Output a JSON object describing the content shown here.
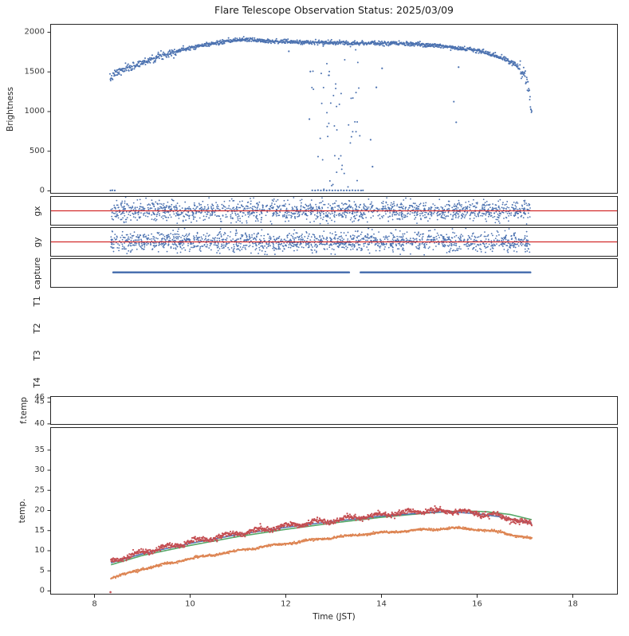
{
  "colors": {
    "blue": "#4c72b0",
    "red": "#c44e52",
    "green": "#55a868",
    "orange": "#dd8452",
    "hline_red": "#d22c2c",
    "spine": "#262626",
    "tick": "#3a3a3a",
    "background": "#ffffff"
  },
  "chart_data": {
    "type": "scatter",
    "subtype": "multi-panel time series (scatter + line, matplotlib style)",
    "title": "Flare Telescope Observation Status: 2025/03/09",
    "xlabel": "Time (JST)",
    "x_range": [
      7.08,
      18.95
    ],
    "x_ticks": [
      8,
      10,
      12,
      14,
      16,
      18
    ],
    "data_time_span": [
      8.33,
      17.15
    ],
    "seed": 7,
    "panels": [
      {
        "ylabel": "Brightness",
        "ylim": [
          -40,
          2100
        ],
        "yticks": [
          0,
          500,
          1000,
          1500,
          2000
        ],
        "border": true,
        "envelope": [
          [
            8.33,
            1400
          ],
          [
            8.45,
            1480
          ],
          [
            8.7,
            1540
          ],
          [
            9.0,
            1610
          ],
          [
            9.3,
            1680
          ],
          [
            9.6,
            1740
          ],
          [
            10.0,
            1800
          ],
          [
            10.4,
            1845
          ],
          [
            10.8,
            1880
          ],
          [
            11.1,
            1905
          ],
          [
            11.4,
            1895
          ],
          [
            11.8,
            1880
          ],
          [
            12.3,
            1870
          ],
          [
            12.8,
            1865
          ],
          [
            13.3,
            1860
          ],
          [
            13.8,
            1858
          ],
          [
            14.3,
            1852
          ],
          [
            14.8,
            1840
          ],
          [
            15.2,
            1825
          ],
          [
            15.6,
            1800
          ],
          [
            16.0,
            1762
          ],
          [
            16.3,
            1720
          ],
          [
            16.6,
            1655
          ],
          [
            16.85,
            1570
          ],
          [
            17.0,
            1460
          ],
          [
            17.08,
            1300
          ],
          [
            17.12,
            1130
          ],
          [
            17.15,
            1000
          ]
        ],
        "series": [
          {
            "name": "brightness",
            "type": "env_scatter",
            "color": "blue",
            "n": 1250,
            "t": [
              8.33,
              17.15
            ],
            "sigma": 13,
            "size": 1.0,
            "sigma_regions": [
              [
                8.33,
                9.8,
                25
              ],
              [
                16.9,
                17.15,
                45
              ]
            ]
          },
          {
            "name": "cloud-dropouts",
            "type": "env_drop_scatter",
            "color": "blue",
            "n": 55,
            "t": [
              12.55,
              13.62
            ],
            "size": 1.0
          },
          {
            "name": "dropout-zeros",
            "type": "scatter_points",
            "color": "blue",
            "size": 1.1,
            "points": [
              [
                12.56,
                2
              ],
              [
                12.62,
                0
              ],
              [
                12.68,
                4
              ],
              [
                12.74,
                0
              ],
              [
                12.8,
                2
              ],
              [
                12.86,
                0
              ],
              [
                12.92,
                3
              ],
              [
                12.98,
                0
              ],
              [
                13.04,
                2
              ],
              [
                13.1,
                0
              ],
              [
                13.16,
                3
              ],
              [
                13.22,
                0
              ],
              [
                13.28,
                2
              ],
              [
                13.34,
                0
              ],
              [
                13.4,
                3
              ],
              [
                13.46,
                0
              ],
              [
                13.52,
                2
              ],
              [
                13.58,
                0
              ],
              [
                13.62,
                2
              ],
              [
                8.34,
                0
              ],
              [
                8.38,
                3
              ],
              [
                8.43,
                0
              ]
            ]
          },
          {
            "name": "stray-points",
            "type": "scatter_points",
            "color": "blue",
            "size": 1.1,
            "points": [
              [
                12.07,
                1755
              ],
              [
                12.5,
                900
              ],
              [
                12.52,
                1500
              ],
              [
                13.78,
                640
              ],
              [
                13.82,
                300
              ],
              [
                13.9,
                1300
              ],
              [
                14.02,
                1540
              ],
              [
                15.52,
                1120
              ],
              [
                15.57,
                860
              ],
              [
                15.62,
                1555
              ],
              [
                15.66,
                1800
              ]
            ]
          }
        ]
      },
      {
        "ylabel": "gx",
        "ylim": [
          -1,
          1
        ],
        "yticks": [],
        "border": true,
        "series": [
          {
            "name": "gx-error",
            "type": "noise_scatter",
            "color": "blue",
            "n": 1600,
            "t": [
              8.35,
              17.12
            ],
            "mean": 0,
            "sigma": 0.33,
            "clip": 0.92,
            "size": 0.9
          },
          {
            "name": "gx-target-line",
            "type": "hline",
            "color": "hline_red",
            "y": 0,
            "lw": 1.2
          }
        ]
      },
      {
        "ylabel": "gy",
        "ylim": [
          -1,
          1
        ],
        "yticks": [],
        "border": true,
        "series": [
          {
            "name": "gy-error",
            "type": "noise_scatter",
            "color": "blue",
            "n": 1600,
            "t": [
              8.35,
              17.12
            ],
            "mean": 0,
            "sigma": 0.33,
            "clip": 0.92,
            "size": 0.9
          },
          {
            "name": "gy-target-line",
            "type": "hline",
            "color": "hline_red",
            "y": 0,
            "lw": 1.2
          }
        ]
      },
      {
        "ylabel": "capture",
        "ylim": [
          0,
          1
        ],
        "yticks": [],
        "border": true,
        "series": [
          {
            "name": "capture-on",
            "type": "dot_line",
            "color": "blue",
            "y": 0.52,
            "t": [
              8.4,
              17.12
            ],
            "gaps": [
              [
                13.33,
                13.57
              ]
            ],
            "size": 1.3,
            "step": 0.004
          }
        ]
      },
      {
        "ylabel": "T1",
        "ylim": [
          0,
          1
        ],
        "yticks": [],
        "border": false,
        "series": []
      },
      {
        "ylabel": "T2",
        "ylim": [
          0,
          1
        ],
        "yticks": [],
        "border": false,
        "series": []
      },
      {
        "ylabel": "T3",
        "ylim": [
          0,
          1
        ],
        "yticks": [],
        "border": false,
        "series": []
      },
      {
        "ylabel": "T4",
        "ylim": [
          0,
          1
        ],
        "yticks": [],
        "border": false,
        "series": []
      },
      {
        "ylabel": "f.temp",
        "ylim": [
          39.7,
          46.3
        ],
        "yticks": [
          46,
          45,
          40
        ],
        "border": true,
        "series": []
      },
      {
        "ylabel": "temp.",
        "ylim": [
          -1,
          40.6
        ],
        "yticks": [
          0,
          5,
          10,
          15,
          20,
          25,
          30,
          35
        ],
        "border": true,
        "xticks": true,
        "series": [
          {
            "name": "temp-green",
            "type": "curve",
            "color": "green",
            "lw": 1.6,
            "points": [
              [
                8.35,
                6.4
              ],
              [
                9,
                8.7
              ],
              [
                10,
                11.2
              ],
              [
                11,
                13.4
              ],
              [
                12,
                15.2
              ],
              [
                13,
                16.8
              ],
              [
                14,
                18.2
              ],
              [
                15,
                19.3
              ],
              [
                15.7,
                19.8
              ],
              [
                16.2,
                19.6
              ],
              [
                16.7,
                18.9
              ],
              [
                17.15,
                17.6
              ]
            ]
          },
          {
            "name": "temp-blue",
            "type": "curve",
            "color": "blue",
            "lw": 1.5,
            "points": [
              [
                8.35,
                6.9
              ],
              [
                9,
                9.1
              ],
              [
                10,
                11.7
              ],
              [
                11,
                13.9
              ],
              [
                12,
                15.7
              ],
              [
                13,
                17.2
              ],
              [
                14,
                18.5
              ],
              [
                15,
                19.4
              ],
              [
                15.4,
                19.6
              ],
              [
                16,
                19.1
              ],
              [
                16.5,
                18.3
              ],
              [
                17.15,
                16.7
              ]
            ]
          },
          {
            "name": "temp-orange",
            "type": "curve_dots",
            "color": "orange",
            "n": 1000,
            "size": 1.0,
            "noise": 0.15,
            "wiggle": [
              0.15,
              1.3
            ],
            "points": [
              [
                8.35,
                3.1
              ],
              [
                9,
                5.3
              ],
              [
                10,
                7.9
              ],
              [
                11,
                9.9
              ],
              [
                12,
                11.7
              ],
              [
                13,
                13.2
              ],
              [
                14,
                14.4
              ],
              [
                15,
                15.2
              ],
              [
                15.6,
                15.5
              ],
              [
                16,
                15.2
              ],
              [
                16.5,
                14.5
              ],
              [
                17.15,
                12.9
              ]
            ]
          },
          {
            "name": "temp-red",
            "type": "curve_dots",
            "color": "red",
            "n": 1100,
            "size": 1.1,
            "noise": 0.32,
            "wiggle": [
              0.4,
              1.6
            ],
            "points": [
              [
                8.35,
                7.3
              ],
              [
                9,
                9.5
              ],
              [
                10,
                12.1
              ],
              [
                11,
                14.2
              ],
              [
                12,
                16.0
              ],
              [
                13,
                17.5
              ],
              [
                14,
                18.8
              ],
              [
                14.8,
                19.7
              ],
              [
                15.4,
                19.9
              ],
              [
                16,
                19.3
              ],
              [
                16.5,
                18.4
              ],
              [
                17.15,
                16.4
              ]
            ]
          },
          {
            "name": "temp-red-outlier",
            "type": "scatter_points",
            "color": "red",
            "size": 1.3,
            "points": [
              [
                8.34,
                -0.4
              ]
            ]
          }
        ]
      }
    ]
  }
}
